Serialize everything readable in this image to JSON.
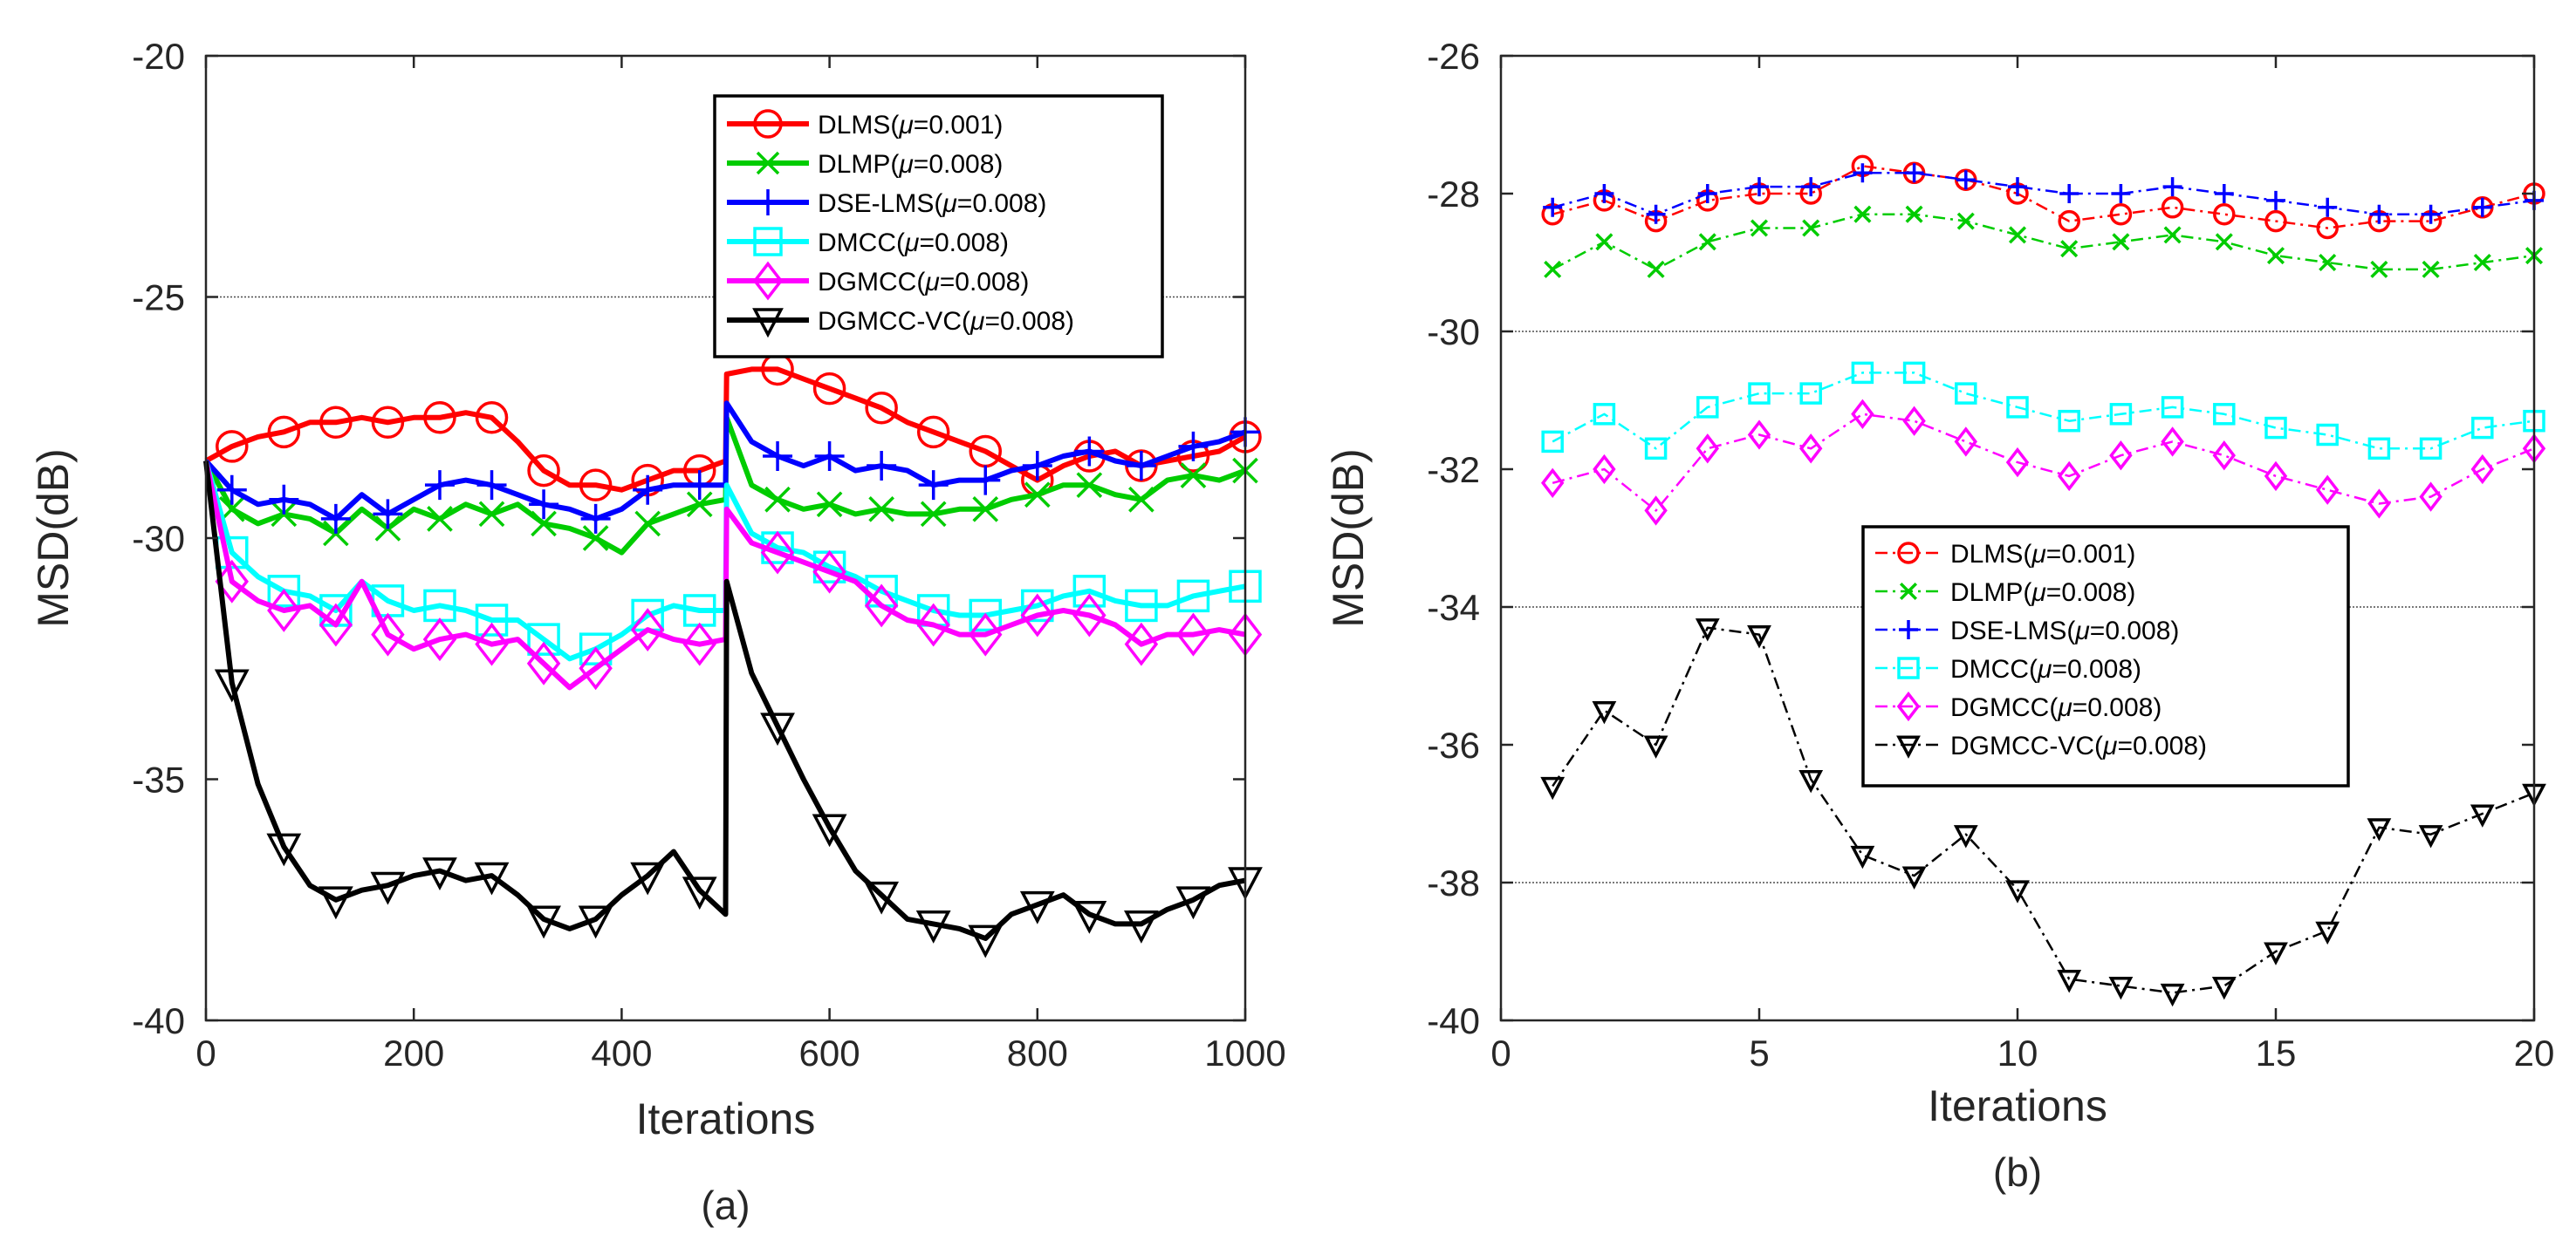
{
  "chart_data": [
    {
      "type": "line",
      "panel": "a",
      "caption": "(a)",
      "xlabel": "Iterations",
      "ylabel": "MSD(dB)",
      "xlim": [
        0,
        1000
      ],
      "ylim": [
        -40,
        -20
      ],
      "xticks": [
        0,
        200,
        400,
        600,
        800,
        1000
      ],
      "yticks": [
        -40,
        -35,
        -30,
        -25,
        -20
      ],
      "xtick_labels": [
        "0",
        "200",
        "400",
        "600",
        "800",
        "1000"
      ],
      "ytick_labels": [
        "-40",
        "-35",
        "-30",
        "-25",
        "-20"
      ],
      "gridlines_y": [
        -25
      ],
      "legend_position": "top-right",
      "marker_spacing": 50,
      "series": [
        {
          "name": "DLMS",
          "mu_label": "μ=0.001",
          "color": "#ff0000",
          "marker": "circle",
          "x": [
            0,
            25,
            50,
            75,
            100,
            125,
            150,
            175,
            200,
            225,
            250,
            275,
            300,
            325,
            350,
            375,
            400,
            425,
            450,
            475,
            500,
            501,
            525,
            550,
            575,
            600,
            625,
            650,
            675,
            700,
            725,
            750,
            775,
            800,
            825,
            850,
            875,
            900,
            925,
            950,
            975,
            1000
          ],
          "y": [
            -28.4,
            -28.1,
            -27.9,
            -27.8,
            -27.6,
            -27.6,
            -27.5,
            -27.6,
            -27.5,
            -27.5,
            -27.4,
            -27.5,
            -28.0,
            -28.6,
            -28.9,
            -28.9,
            -29.0,
            -28.8,
            -28.6,
            -28.6,
            -28.4,
            -26.6,
            -26.5,
            -26.5,
            -26.7,
            -26.9,
            -27.1,
            -27.3,
            -27.6,
            -27.8,
            -28.0,
            -28.2,
            -28.5,
            -28.8,
            -28.5,
            -28.3,
            -28.2,
            -28.5,
            -28.4,
            -28.3,
            -28.2,
            -27.9
          ]
        },
        {
          "name": "DLMP",
          "mu_label": "μ=0.008",
          "color": "#00cc00",
          "marker": "x",
          "x": [
            0,
            25,
            50,
            75,
            100,
            125,
            150,
            175,
            200,
            225,
            250,
            275,
            300,
            325,
            350,
            375,
            400,
            425,
            450,
            475,
            500,
            501,
            525,
            550,
            575,
            600,
            625,
            650,
            675,
            700,
            725,
            750,
            775,
            800,
            825,
            850,
            875,
            900,
            925,
            950,
            975,
            1000
          ],
          "y": [
            -28.4,
            -29.4,
            -29.7,
            -29.5,
            -29.6,
            -29.9,
            -29.4,
            -29.8,
            -29.4,
            -29.6,
            -29.3,
            -29.5,
            -29.3,
            -29.7,
            -29.8,
            -30.0,
            -30.3,
            -29.7,
            -29.5,
            -29.3,
            -29.2,
            -27.5,
            -28.9,
            -29.2,
            -29.4,
            -29.3,
            -29.5,
            -29.4,
            -29.5,
            -29.5,
            -29.4,
            -29.4,
            -29.2,
            -29.1,
            -28.9,
            -28.9,
            -29.1,
            -29.2,
            -28.8,
            -28.7,
            -28.8,
            -28.6
          ]
        },
        {
          "name": "DSE-LMS",
          "mu_label": "μ=0.008",
          "color": "#0000ff",
          "marker": "plus",
          "x": [
            0,
            25,
            50,
            75,
            100,
            125,
            150,
            175,
            200,
            225,
            250,
            275,
            300,
            325,
            350,
            375,
            400,
            425,
            450,
            475,
            500,
            501,
            525,
            550,
            575,
            600,
            625,
            650,
            675,
            700,
            725,
            750,
            775,
            800,
            825,
            850,
            875,
            900,
            925,
            950,
            975,
            1000
          ],
          "y": [
            -28.4,
            -29.0,
            -29.3,
            -29.2,
            -29.3,
            -29.6,
            -29.1,
            -29.5,
            -29.2,
            -28.9,
            -28.8,
            -28.9,
            -29.1,
            -29.3,
            -29.4,
            -29.6,
            -29.4,
            -29.0,
            -28.9,
            -28.9,
            -28.9,
            -27.2,
            -28.0,
            -28.3,
            -28.5,
            -28.3,
            -28.6,
            -28.5,
            -28.6,
            -28.9,
            -28.8,
            -28.8,
            -28.6,
            -28.5,
            -28.3,
            -28.2,
            -28.4,
            -28.5,
            -28.3,
            -28.1,
            -28.0,
            -27.8
          ]
        },
        {
          "name": "DMCC",
          "mu_label": "μ=0.008",
          "color": "#00ffff",
          "marker": "square",
          "x": [
            0,
            25,
            50,
            75,
            100,
            125,
            150,
            175,
            200,
            225,
            250,
            275,
            300,
            325,
            350,
            375,
            400,
            425,
            450,
            475,
            500,
            501,
            525,
            550,
            575,
            600,
            625,
            650,
            675,
            700,
            725,
            750,
            775,
            800,
            825,
            850,
            875,
            900,
            925,
            950,
            975,
            1000
          ],
          "y": [
            -28.4,
            -30.3,
            -30.8,
            -31.1,
            -31.2,
            -31.5,
            -30.9,
            -31.3,
            -31.5,
            -31.4,
            -31.5,
            -31.7,
            -31.7,
            -32.1,
            -32.5,
            -32.3,
            -32.0,
            -31.6,
            -31.4,
            -31.5,
            -31.5,
            -28.9,
            -29.9,
            -30.2,
            -30.3,
            -30.6,
            -30.8,
            -31.1,
            -31.3,
            -31.5,
            -31.6,
            -31.6,
            -31.5,
            -31.4,
            -31.2,
            -31.1,
            -31.3,
            -31.4,
            -31.4,
            -31.2,
            -31.1,
            -31.0
          ]
        },
        {
          "name": "DGMCC",
          "mu_label": "μ=0.008",
          "color": "#ff00ff",
          "marker": "diamond",
          "x": [
            0,
            25,
            50,
            75,
            100,
            125,
            150,
            175,
            200,
            225,
            250,
            275,
            300,
            325,
            350,
            375,
            400,
            425,
            450,
            475,
            500,
            501,
            525,
            550,
            575,
            600,
            625,
            650,
            675,
            700,
            725,
            750,
            775,
            800,
            825,
            850,
            875,
            900,
            925,
            950,
            975,
            1000
          ],
          "y": [
            -28.4,
            -30.9,
            -31.3,
            -31.5,
            -31.4,
            -31.8,
            -30.9,
            -32.0,
            -32.3,
            -32.1,
            -32.0,
            -32.2,
            -32.1,
            -32.6,
            -33.1,
            -32.7,
            -32.3,
            -31.9,
            -32.1,
            -32.2,
            -32.1,
            -29.4,
            -30.1,
            -30.3,
            -30.5,
            -30.7,
            -30.9,
            -31.4,
            -31.7,
            -31.8,
            -32.0,
            -32.0,
            -31.8,
            -31.6,
            -31.5,
            -31.6,
            -31.8,
            -32.2,
            -32.0,
            -32.0,
            -31.9,
            -32.0
          ]
        },
        {
          "name": "DGMCC-VC",
          "mu_label": "μ=0.008",
          "color": "#000000",
          "marker": "triangle-down",
          "x": [
            0,
            25,
            50,
            75,
            100,
            125,
            150,
            175,
            200,
            225,
            250,
            275,
            300,
            325,
            350,
            375,
            400,
            425,
            450,
            475,
            500,
            501,
            525,
            550,
            575,
            600,
            625,
            650,
            675,
            700,
            725,
            750,
            775,
            800,
            825,
            850,
            875,
            900,
            925,
            950,
            975,
            1000
          ],
          "y": [
            -28.4,
            -33.0,
            -35.1,
            -36.4,
            -37.2,
            -37.5,
            -37.3,
            -37.2,
            -37.0,
            -36.9,
            -37.1,
            -37.0,
            -37.4,
            -37.9,
            -38.1,
            -37.9,
            -37.4,
            -37.0,
            -36.5,
            -37.3,
            -37.8,
            -30.9,
            -32.8,
            -33.9,
            -35.0,
            -36.0,
            -36.9,
            -37.4,
            -37.9,
            -38.0,
            -38.1,
            -38.3,
            -37.8,
            -37.6,
            -37.4,
            -37.8,
            -38.0,
            -38.0,
            -37.7,
            -37.5,
            -37.2,
            -37.1
          ]
        }
      ],
      "legend": [
        {
          "name": "DLMS",
          "mu": "μ",
          "value": "=0.001)"
        },
        {
          "name": "DLMP",
          "mu": "μ",
          "value": "=0.008)"
        },
        {
          "name": "DSE-LMS",
          "mu": "μ",
          "value": "=0.008)"
        },
        {
          "name": "DMCC",
          "mu": "μ",
          "value": "=0.008)"
        },
        {
          "name": "DGMCC",
          "mu": "μ",
          "value": "=0.008)"
        },
        {
          "name": "DGMCC-VC",
          "mu": "μ",
          "value": "=0.008)"
        }
      ]
    },
    {
      "type": "line",
      "panel": "b",
      "caption": "(b)",
      "xlabel": "Iterations",
      "ylabel": "MSD(dB)",
      "xlim": [
        0,
        20
      ],
      "ylim": [
        -40,
        -26
      ],
      "xticks": [
        0,
        5,
        10,
        15,
        20
      ],
      "yticks": [
        -40,
        -38,
        -36,
        -34,
        -32,
        -30,
        -28,
        -26
      ],
      "xtick_labels": [
        "0",
        "5",
        "10",
        "15",
        "20"
      ],
      "ytick_labels": [
        "-40",
        "-38",
        "-36",
        "-34",
        "-32",
        "-30",
        "-28",
        "-26"
      ],
      "gridlines_y": [
        -30,
        -34,
        -38
      ],
      "legend_position": "center",
      "line_style": "dash-dot",
      "series": [
        {
          "name": "DLMS",
          "mu_label": "μ=0.001",
          "color": "#ff0000",
          "marker": "circle",
          "x": [
            1,
            2,
            3,
            4,
            5,
            6,
            7,
            8,
            9,
            10,
            11,
            12,
            13,
            14,
            15,
            16,
            17,
            18,
            19,
            20
          ],
          "y": [
            -28.3,
            -28.1,
            -28.4,
            -28.1,
            -28.0,
            -28.0,
            -27.6,
            -27.7,
            -27.8,
            -28.0,
            -28.4,
            -28.3,
            -28.2,
            -28.3,
            -28.4,
            -28.5,
            -28.4,
            -28.4,
            -28.2,
            -28.0
          ]
        },
        {
          "name": "DLMP",
          "mu_label": "μ=0.008",
          "color": "#00cc00",
          "marker": "x",
          "x": [
            1,
            2,
            3,
            4,
            5,
            6,
            7,
            8,
            9,
            10,
            11,
            12,
            13,
            14,
            15,
            16,
            17,
            18,
            19,
            20
          ],
          "y": [
            -29.1,
            -28.7,
            -29.1,
            -28.7,
            -28.5,
            -28.5,
            -28.3,
            -28.3,
            -28.4,
            -28.6,
            -28.8,
            -28.7,
            -28.6,
            -28.7,
            -28.9,
            -29.0,
            -29.1,
            -29.1,
            -29.0,
            -28.9
          ]
        },
        {
          "name": "DSE-LMS",
          "mu_label": "μ=0.008",
          "color": "#0000ff",
          "marker": "plus",
          "x": [
            1,
            2,
            3,
            4,
            5,
            6,
            7,
            8,
            9,
            10,
            11,
            12,
            13,
            14,
            15,
            16,
            17,
            18,
            19,
            20
          ],
          "y": [
            -28.2,
            -28.0,
            -28.3,
            -28.0,
            -27.9,
            -27.9,
            -27.7,
            -27.7,
            -27.8,
            -27.9,
            -28.0,
            -28.0,
            -27.9,
            -28.0,
            -28.1,
            -28.2,
            -28.3,
            -28.3,
            -28.2,
            -28.1
          ]
        },
        {
          "name": "DMCC",
          "mu_label": "μ=0.008",
          "color": "#00ffff",
          "marker": "square",
          "x": [
            1,
            2,
            3,
            4,
            5,
            6,
            7,
            8,
            9,
            10,
            11,
            12,
            13,
            14,
            15,
            16,
            17,
            18,
            19,
            20
          ],
          "y": [
            -31.6,
            -31.2,
            -31.7,
            -31.1,
            -30.9,
            -30.9,
            -30.6,
            -30.6,
            -30.9,
            -31.1,
            -31.3,
            -31.2,
            -31.1,
            -31.2,
            -31.4,
            -31.5,
            -31.7,
            -31.7,
            -31.4,
            -31.3
          ]
        },
        {
          "name": "DGMCC",
          "mu_label": "μ=0.008",
          "color": "#ff00ff",
          "marker": "diamond",
          "x": [
            1,
            2,
            3,
            4,
            5,
            6,
            7,
            8,
            9,
            10,
            11,
            12,
            13,
            14,
            15,
            16,
            17,
            18,
            19,
            20
          ],
          "y": [
            -32.2,
            -32.0,
            -32.6,
            -31.7,
            -31.5,
            -31.7,
            -31.2,
            -31.3,
            -31.6,
            -31.9,
            -32.1,
            -31.8,
            -31.6,
            -31.8,
            -32.1,
            -32.3,
            -32.5,
            -32.4,
            -32.0,
            -31.7
          ]
        },
        {
          "name": "DGMCC-VC",
          "mu_label": "μ=0.008",
          "color": "#000000",
          "marker": "triangle-down",
          "x": [
            1,
            2,
            3,
            4,
            5,
            6,
            7,
            8,
            9,
            10,
            11,
            12,
            13,
            14,
            15,
            16,
            17,
            18,
            19,
            20
          ],
          "y": [
            -36.6,
            -35.5,
            -36.0,
            -34.3,
            -34.4,
            -36.5,
            -37.6,
            -37.9,
            -37.3,
            -38.1,
            -39.4,
            -39.5,
            -39.6,
            -39.5,
            -39.0,
            -38.7,
            -37.2,
            -37.3,
            -37.0,
            -36.7
          ]
        }
      ],
      "legend": [
        {
          "name": "DLMS",
          "mu": "μ",
          "value": "=0.001)"
        },
        {
          "name": "DLMP",
          "mu": "μ",
          "value": "=0.008)"
        },
        {
          "name": "DSE-LMS",
          "mu": "μ",
          "value": "=0.008)"
        },
        {
          "name": "DMCC",
          "mu": "μ",
          "value": "=0.008)"
        },
        {
          "name": "DGMCC",
          "mu": "μ",
          "value": "=0.008)"
        },
        {
          "name": "DGMCC-VC",
          "mu": "μ",
          "value": "=0.008)"
        }
      ]
    }
  ]
}
